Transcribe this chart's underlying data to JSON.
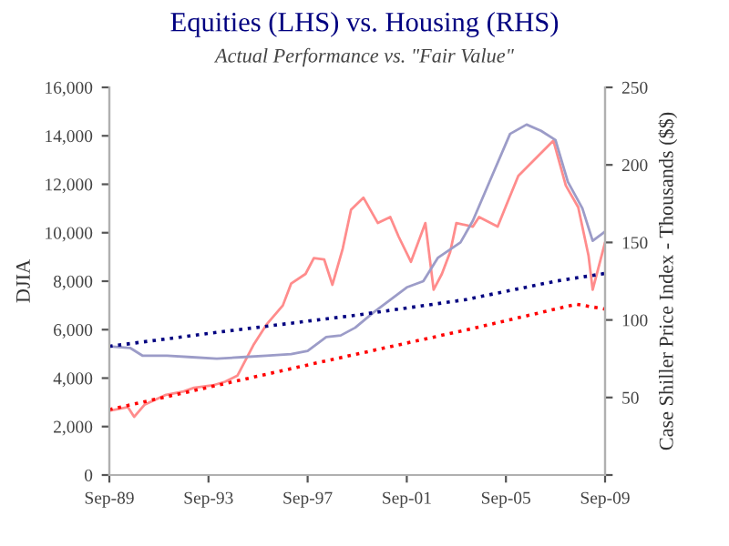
{
  "chart_data": {
    "type": "line",
    "title": "Equities (LHS) vs. Housing (RHS)",
    "subtitle": "Actual Performance vs. \"Fair Value\"",
    "ylabel": "DJIA",
    "y2label": "Case Shiller Price Index - Thousands ($$)",
    "xlim": [
      "1989-09",
      "2009-09"
    ],
    "xticks": [
      {
        "value": "1989-09",
        "label": "Sep-89"
      },
      {
        "value": "1993-09",
        "label": "Sep-93"
      },
      {
        "value": "1997-09",
        "label": "Sep-97"
      },
      {
        "value": "2001-09",
        "label": "Sep-01"
      },
      {
        "value": "2005-09",
        "label": "Sep-05"
      },
      {
        "value": "2009-09",
        "label": "Sep-09"
      }
    ],
    "ylim": [
      0,
      16000
    ],
    "yticks": [
      {
        "value": 0,
        "label": "0"
      },
      {
        "value": 2000,
        "label": "2,000"
      },
      {
        "value": 4000,
        "label": "4,000"
      },
      {
        "value": 6000,
        "label": "6,000"
      },
      {
        "value": 8000,
        "label": "8,000"
      },
      {
        "value": 10000,
        "label": "10,000"
      },
      {
        "value": 12000,
        "label": "12,000"
      },
      {
        "value": 14000,
        "label": "14,000"
      },
      {
        "value": 16000,
        "label": "16,000"
      }
    ],
    "y2lim": [
      0,
      250
    ],
    "y2ticks": [
      {
        "value": 0,
        "label": null
      },
      50,
      100,
      150,
      200,
      250
    ],
    "grid": false,
    "legend": false,
    "marker": "none",
    "series": [
      {
        "color": "#ff8c8c",
        "line_style": "solid",
        "axis": "y",
        "x": [
          "1989-09",
          "1990-06",
          "1990-09",
          "1991-02",
          "1991-12",
          "1992-09",
          "1993-02",
          "1993-11",
          "1994-05",
          "1994-11",
          "1995-07",
          "1996-01",
          "1996-09",
          "1997-01",
          "1997-08",
          "1997-12",
          "1998-05",
          "1998-09",
          "1999-02",
          "1999-06",
          "1999-12",
          "2000-07",
          "2001-01",
          "2001-05",
          "2001-11",
          "2002-06",
          "2002-10",
          "2003-02",
          "2003-06",
          "2003-09",
          "2004-05",
          "2004-08",
          "2005-05",
          "2005-09",
          "2006-03",
          "2007-08",
          "2008-02",
          "2008-08",
          "2009-01",
          "2009-03",
          "2009-09"
        ],
        "values": [
          2650,
          2800,
          2400,
          2900,
          3300,
          3450,
          3600,
          3700,
          3850,
          4100,
          5400,
          6200,
          7000,
          7900,
          8300,
          8950,
          8900,
          7850,
          9350,
          10950,
          11450,
          10400,
          10650,
          9850,
          8800,
          10400,
          7650,
          8300,
          9200,
          10400,
          10250,
          10650,
          10250,
          11100,
          12350,
          13800,
          11950,
          11050,
          9050,
          7650,
          9600
        ]
      },
      {
        "color": "#9c9cc8",
        "line_style": "solid",
        "axis": "y2",
        "x": [
          "1989-09",
          "1990-07",
          "1991-01",
          "1992-01",
          "1993-01",
          "1994-01",
          "1995-01",
          "1996-01",
          "1997-01",
          "1997-09",
          "1998-06",
          "1999-01",
          "1999-08",
          "2000-05",
          "2001-09",
          "2002-05",
          "2002-12",
          "2003-11",
          "2004-05",
          "2005-01",
          "2005-11",
          "2006-07",
          "2007-02",
          "2007-09",
          "2008-03",
          "2008-10",
          "2009-03",
          "2009-09"
        ],
        "values": [
          83,
          82,
          77,
          77,
          76,
          75,
          76,
          77,
          78,
          80,
          89,
          90,
          95,
          105,
          121,
          125,
          140,
          150,
          164,
          189,
          220,
          226,
          222,
          216,
          189,
          172,
          151,
          157
        ]
      },
      {
        "color": "#000080",
        "line_style": "dotted",
        "axis": "y2",
        "x": [
          "1989-09",
          "1994-01",
          "1999-08",
          "2004-01",
          "2007-09",
          "2009-09"
        ],
        "values": [
          83,
          92,
          103,
          113,
          125,
          130
        ]
      },
      {
        "color": "#ff0000",
        "line_style": "dotted",
        "axis": "y",
        "x": [
          "1989-09",
          "1997-12",
          "2004-05",
          "2008-07",
          "2009-09"
        ],
        "values": [
          2700,
          4600,
          6050,
          7050,
          6850
        ]
      }
    ]
  }
}
